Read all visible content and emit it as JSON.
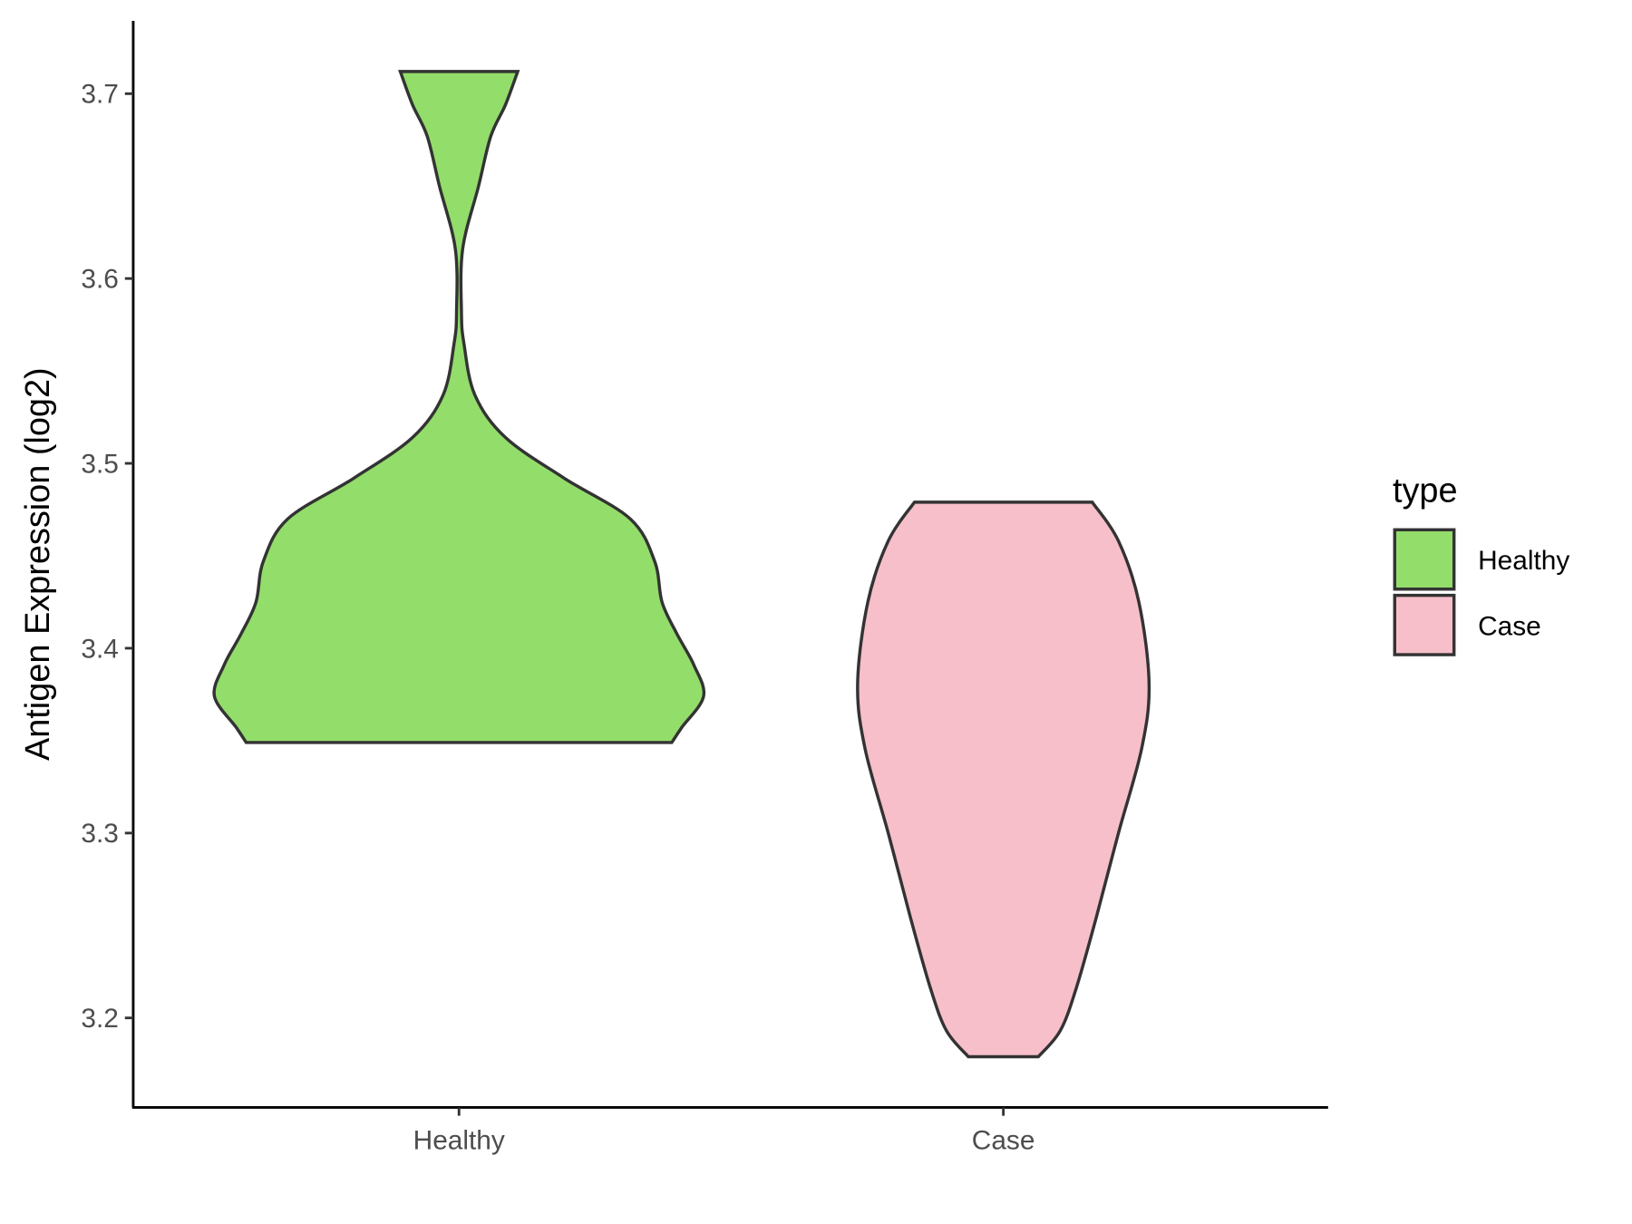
{
  "chart_data": {
    "type": "violin",
    "title": "",
    "xlabel": "",
    "ylabel": "Antigen Expression (log2)",
    "ylim": [
      3.155,
      3.74
    ],
    "yticks": [
      3.2,
      3.3,
      3.4,
      3.5,
      3.6,
      3.7
    ],
    "ytick_labels": [
      "3.2",
      "3.3",
      "3.4",
      "3.5",
      "3.6",
      "3.7"
    ],
    "categories": [
      "Healthy",
      "Case"
    ],
    "grid": false,
    "legend": {
      "title": "type",
      "position": "right",
      "entries": [
        "Healthy",
        "Case"
      ]
    },
    "series": [
      {
        "name": "Healthy",
        "color": "#93DD6B",
        "min": 3.349,
        "max": 3.712,
        "profile": [
          [
            3.712,
            0.24
          ],
          [
            3.694,
            0.19
          ],
          [
            3.677,
            0.13
          ],
          [
            3.65,
            0.08
          ],
          [
            3.616,
            0.015
          ],
          [
            3.582,
            0.01
          ],
          [
            3.565,
            0.02
          ],
          [
            3.537,
            0.065
          ],
          [
            3.514,
            0.19
          ],
          [
            3.492,
            0.43
          ],
          [
            3.47,
            0.7
          ],
          [
            3.447,
            0.8
          ],
          [
            3.425,
            0.83
          ],
          [
            3.408,
            0.89
          ],
          [
            3.391,
            0.96
          ],
          [
            3.374,
            1.0
          ],
          [
            3.357,
            0.91
          ],
          [
            3.349,
            0.87
          ]
        ]
      },
      {
        "name": "Case",
        "color": "#F7BFCA",
        "min": 3.179,
        "max": 3.479,
        "profile": [
          [
            3.479,
            0.61
          ],
          [
            3.458,
            0.79
          ],
          [
            3.425,
            0.93
          ],
          [
            3.381,
            1.0
          ],
          [
            3.346,
            0.95
          ],
          [
            3.3,
            0.79
          ],
          [
            3.255,
            0.64
          ],
          [
            3.216,
            0.5
          ],
          [
            3.193,
            0.39
          ],
          [
            3.179,
            0.24
          ]
        ]
      }
    ]
  }
}
